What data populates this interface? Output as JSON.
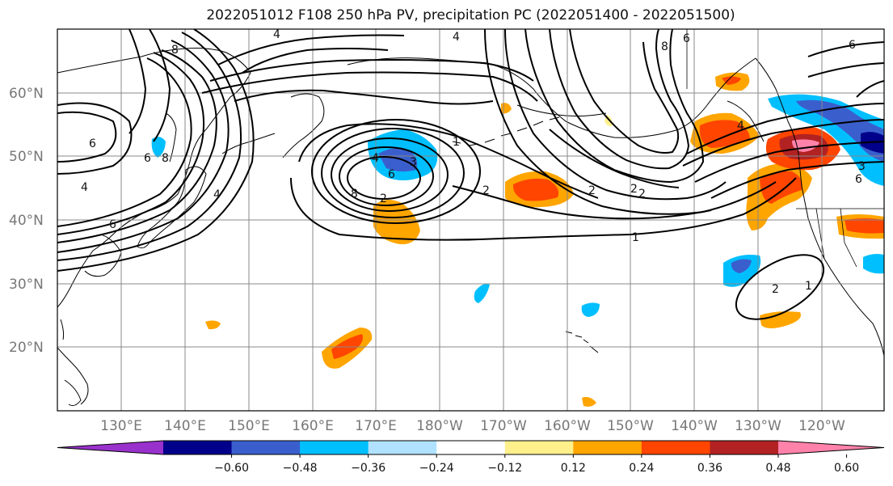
{
  "title": "2022051012 F108 250 hPa PV, precipitation PC (2022051400 - 2022051500)",
  "map": {
    "lat_labels": [
      "60°N",
      "50°N",
      "40°N",
      "30°N",
      "20°N"
    ],
    "lon_labels": [
      "130°E",
      "140°E",
      "150°E",
      "160°E",
      "170°E",
      "180°W",
      "170°W",
      "160°W",
      "150°W",
      "140°W",
      "130°W",
      "120°W"
    ],
    "contour_labels": [
      "4",
      "4",
      "6",
      "8",
      "6",
      "8",
      "4",
      "6",
      "4",
      "8",
      "6",
      "4",
      "3",
      "2",
      "2",
      "1",
      "2",
      "2",
      "1",
      "6",
      "4",
      "2",
      "2",
      "1",
      "8",
      "6",
      "6",
      "3"
    ]
  },
  "colorbar": {
    "colors": [
      "#9932cc",
      "#00008b",
      "#3a5fcd",
      "#00bfff",
      "#b0e2ff",
      "#ffffff",
      "#fff08c",
      "#ffa500",
      "#ff4500",
      "#b22222",
      "#ff82ab"
    ],
    "tick_labels": [
      "−0.60",
      "−0.48",
      "−0.36",
      "−0.24",
      "−0.12",
      "0.12",
      "0.24",
      "0.36",
      "0.48",
      "0.60"
    ]
  }
}
